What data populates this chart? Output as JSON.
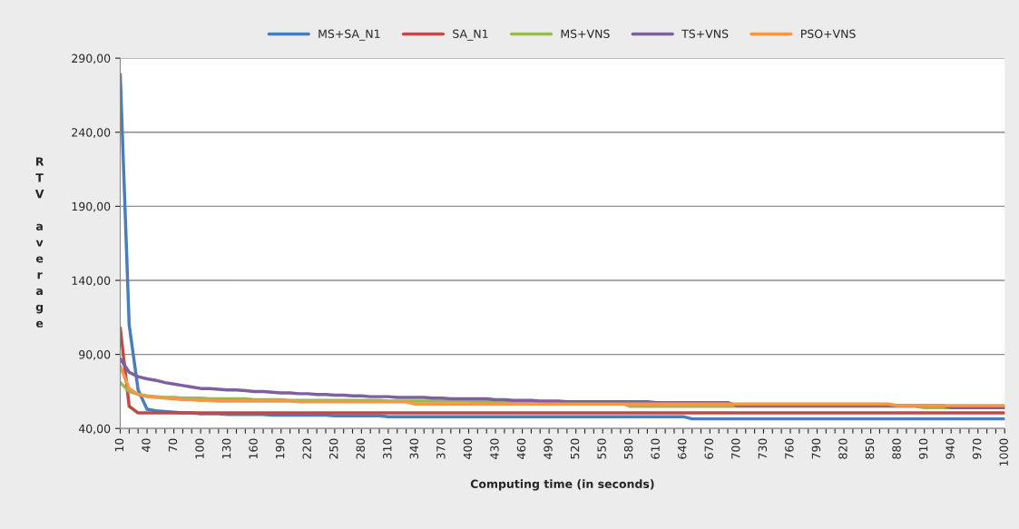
{
  "chart_data": {
    "type": "line",
    "xlabel": "Computing time (in seconds)",
    "ylabel": "RTV average",
    "categories": [
      "10",
      null,
      null,
      "40",
      null,
      null,
      "70",
      null,
      null,
      "100",
      null,
      null,
      "130",
      null,
      null,
      "160",
      null,
      null,
      "190",
      null,
      null,
      "220",
      null,
      null,
      "250",
      null,
      null,
      "280",
      null,
      null,
      "310",
      null,
      null,
      "340",
      null,
      null,
      "370",
      null,
      null,
      "400",
      null,
      null,
      "430",
      null,
      null,
      "460",
      null,
      null,
      "490",
      null,
      null,
      "520",
      null,
      null,
      "550",
      null,
      null,
      "580",
      null,
      null,
      "610",
      null,
      null,
      "640",
      null,
      null,
      "670",
      null,
      null,
      "700",
      null,
      null,
      "730",
      null,
      null,
      "760",
      null,
      null,
      "790",
      null,
      null,
      "820",
      null,
      null,
      "850",
      null,
      null,
      "880",
      null,
      null,
      "910",
      null,
      null,
      "940",
      null,
      null,
      "970",
      null,
      null,
      "1000"
    ],
    "series": [
      {
        "name": "MS+SA_N1",
        "color": "#4a7ebb",
        "values": [
          279,
          110,
          66,
          53,
          52,
          51.5,
          51,
          50.5,
          50.5,
          50,
          50,
          50,
          49.5,
          49.5,
          49.5,
          49.5,
          49.5,
          49,
          49,
          49,
          49,
          49,
          49,
          49,
          48.5,
          48.5,
          48.5,
          48.5,
          48.5,
          48.5,
          48,
          48,
          48,
          48,
          48,
          48,
          48,
          48,
          48,
          48,
          48,
          48,
          48,
          48,
          48,
          48,
          48,
          48,
          48,
          48,
          48,
          48,
          48,
          48,
          48,
          48,
          48,
          48,
          48,
          48,
          48,
          48,
          48,
          48,
          46.5,
          46.5,
          46.5,
          46.5,
          46.5,
          46.5,
          46.5,
          46.5,
          46.5,
          46.5,
          46.5,
          46.5,
          46.5,
          46.5,
          46.5,
          46.5,
          46.5,
          46.5,
          46.5,
          46.5,
          46.5,
          46.5,
          46.5,
          46.5,
          46.5,
          46.5,
          46.5,
          46.5,
          46.5,
          46.5,
          46.5,
          46.5,
          46.5,
          46.5,
          46.5,
          46.5
        ]
      },
      {
        "name": "SA_N1",
        "color": "#be4b48",
        "values": [
          108,
          55,
          50.5,
          50.5,
          50.5,
          50.5,
          50.5,
          50.5,
          50.5,
          50.5,
          50.5,
          50.5,
          50.5,
          50.5,
          50.5,
          50.5,
          50.5,
          50.5,
          50.5,
          50.5,
          50.5,
          50.5,
          50.5,
          50.5,
          50.5,
          50.5,
          50.5,
          50.5,
          50.5,
          50.5,
          50.5,
          50.5,
          50.5,
          50.5,
          50.5,
          50.5,
          50.5,
          50.5,
          50.5,
          50.5,
          50.5,
          50.5,
          50.5,
          50.5,
          50.5,
          50.5,
          50.5,
          50.5,
          50.5,
          50.5,
          50.5,
          50.5,
          50.5,
          50.5,
          50.5,
          50.5,
          50.5,
          50.5,
          50.5,
          50.5,
          50.5,
          50.5,
          50.5,
          50.5,
          50.5,
          50.5,
          50.5,
          50.5,
          50.5,
          50.5,
          50.5,
          50.5,
          50.5,
          50.5,
          50.5,
          50.5,
          50.5,
          50.5,
          50.5,
          50.5,
          50.5,
          50.5,
          50.5,
          50.5,
          50.5,
          50.5,
          50.5,
          50.5,
          50.5,
          50.5,
          50.5,
          50.5,
          50.5,
          50.5,
          50.5,
          50.5,
          50.5,
          50.5,
          50.5,
          50.5
        ]
      },
      {
        "name": "MS+VNS",
        "color": "#98b954",
        "values": [
          71,
          65,
          63,
          62,
          61.5,
          61,
          61,
          60.5,
          60.5,
          60.5,
          60,
          60,
          60,
          60,
          60,
          59.5,
          59.5,
          59.5,
          59.5,
          59,
          59,
          59,
          59,
          59,
          59,
          59,
          59,
          59,
          59,
          59,
          58.5,
          58.5,
          58.5,
          58.5,
          58.5,
          58.5,
          58.5,
          58.5,
          58.5,
          58.5,
          58,
          58,
          58,
          58,
          58,
          58,
          58,
          58,
          58,
          58,
          57.5,
          57.5,
          57.5,
          57.5,
          57.5,
          57.5,
          57.5,
          55,
          55,
          55,
          55,
          55,
          55,
          55,
          55,
          55,
          55,
          55,
          55,
          55,
          55,
          55,
          55,
          55,
          55,
          55,
          55,
          55,
          55,
          55,
          55,
          55,
          55,
          55,
          55,
          55,
          55,
          55,
          55,
          55,
          54,
          54,
          54,
          54,
          54,
          54,
          54,
          54,
          54,
          54
        ]
      },
      {
        "name": "TS+VNS",
        "color": "#7d60a0",
        "values": [
          87,
          78,
          75,
          73.5,
          72.5,
          71,
          70,
          69,
          68,
          67,
          67,
          66.5,
          66,
          66,
          65.5,
          65,
          65,
          64.5,
          64,
          64,
          63.5,
          63.5,
          63,
          63,
          62.5,
          62.5,
          62,
          62,
          61.5,
          61.5,
          61.5,
          61,
          61,
          61,
          61,
          60.5,
          60.5,
          60,
          60,
          60,
          60,
          60,
          59.5,
          59.5,
          59,
          59,
          59,
          58.5,
          58.5,
          58.5,
          58,
          58,
          58,
          58,
          58,
          58,
          58,
          58,
          58,
          58,
          57.5,
          57.5,
          57.5,
          57.5,
          57.5,
          57.5,
          57.5,
          57.5,
          57.5,
          55.5,
          55.5,
          55.5,
          55.5,
          55.5,
          55.5,
          55.5,
          55.5,
          55.5,
          55.5,
          55.5,
          55.5,
          55.5,
          55.5,
          55.5,
          55.5,
          55.5,
          55.5,
          55.5,
          null,
          null,
          null,
          null,
          55.5,
          54,
          54,
          54,
          54,
          54,
          54,
          54
        ]
      },
      {
        "name": "PSO+VNS",
        "color": "#f79646",
        "values": [
          82,
          67,
          63,
          61.5,
          61,
          60.5,
          60,
          59.5,
          59.5,
          59,
          59,
          58.5,
          58.5,
          58.5,
          58.5,
          58.5,
          58.5,
          58.5,
          58.5,
          58.5,
          58,
          58,
          58,
          58,
          58,
          58,
          58,
          58,
          58,
          58,
          58,
          58,
          58,
          56.5,
          56.5,
          56.5,
          56.5,
          56.5,
          56.5,
          56.5,
          56.5,
          56.5,
          56.5,
          56.5,
          56.5,
          56.5,
          56.5,
          56.5,
          56.5,
          56.5,
          56.5,
          56.5,
          56.5,
          56.5,
          56.5,
          56.5,
          56.5,
          56.5,
          56.5,
          56.5,
          56.5,
          56.5,
          56.5,
          56.5,
          56.5,
          56.5,
          56.5,
          56.5,
          56.5,
          56.5,
          56.5,
          56.5,
          56.5,
          56.5,
          56.5,
          56.5,
          56.5,
          56.5,
          56.5,
          56.5,
          56.5,
          56.5,
          56.5,
          56.5,
          56.5,
          56.5,
          56.5,
          55.5,
          55.5,
          55.5,
          55.5,
          55.5,
          55.5,
          55.5,
          55.5,
          55.5,
          55.5,
          55.5,
          55.5,
          55.5
        ]
      }
    ],
    "ylim": [
      40,
      290
    ],
    "yticks": [
      {
        "value": 40,
        "label": "40,00"
      },
      {
        "value": 90,
        "label": "90,00"
      },
      {
        "value": 140,
        "label": "140,00"
      },
      {
        "value": 190,
        "label": "190,00"
      },
      {
        "value": 240,
        "label": "240,00"
      },
      {
        "value": 290,
        "label": "290,00"
      }
    ],
    "grid": "y",
    "legend": "top",
    "marker": "none",
    "line_style": "solid"
  }
}
